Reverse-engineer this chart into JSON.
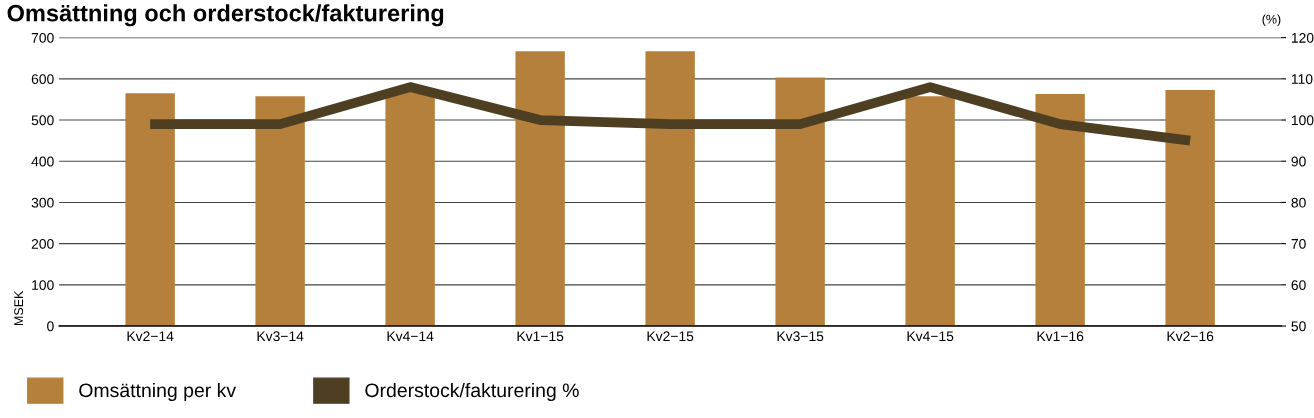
{
  "chart_data": {
    "type": "bar",
    "title": "Omsättning och orderstock/fakturering",
    "ylabel": "MSEK",
    "y2label": "(%)",
    "categories": [
      "Kv2−14",
      "Kv3−14",
      "Kv4−14",
      "Kv1−15",
      "Kv2−15",
      "Kv3−15",
      "Kv4−15",
      "Kv1−16",
      "Kv2−16"
    ],
    "series": [
      {
        "name": "Omsättning per kv",
        "color": "#b5803b",
        "values": [
          565,
          558,
          570,
          667,
          667,
          603,
          558,
          563,
          573
        ]
      },
      {
        "name": "Orderstock/fakturering %",
        "type": "line",
        "axis": "y2",
        "color": "#4f3f22",
        "values": [
          99,
          99,
          108,
          100,
          99,
          99,
          108,
          99,
          95
        ]
      }
    ],
    "ylim": [
      0,
      700
    ],
    "yticks": [
      0,
      100,
      200,
      300,
      400,
      500,
      600,
      700
    ],
    "y2lim": [
      50,
      120
    ],
    "y2ticks": [
      50,
      60,
      70,
      80,
      90,
      100,
      110,
      120
    ],
    "grid": "y",
    "legend": "bottom left",
    "marker": "none"
  }
}
